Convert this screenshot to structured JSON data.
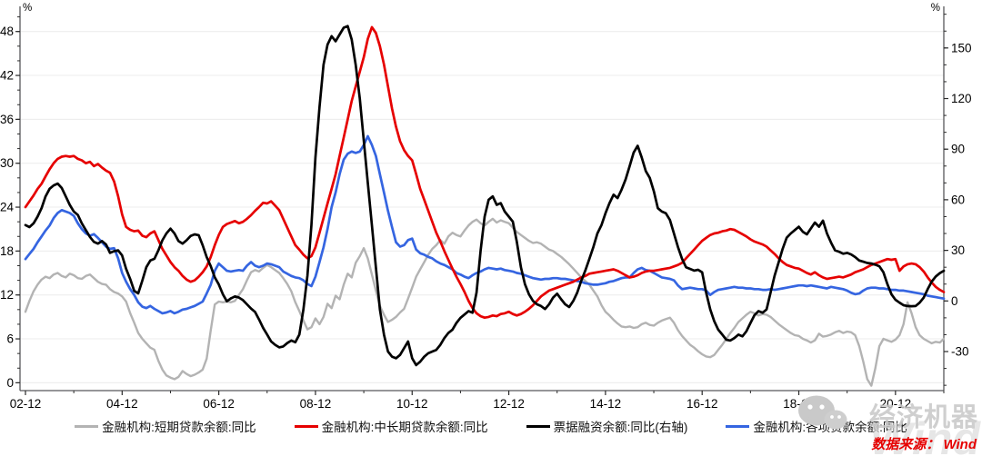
{
  "footer": {
    "source_label": "数据来源： Wind"
  },
  "watermark": {
    "brand": "经济机器",
    "logo": "chat-face-icon",
    "background_text": "Wind"
  },
  "legend": {
    "items": [
      {
        "label": "金融机构:短期贷款余额:同比",
        "color": "#b3b3b3"
      },
      {
        "label": "金融机构:中长期贷款余额:同比",
        "color": "#e60000"
      },
      {
        "label": "票据融资余额:同比(右轴)",
        "color": "#000000"
      },
      {
        "label": "金融机构:各项贷款余额:同比",
        "color": "#3565e1"
      }
    ]
  },
  "chart_data": {
    "type": "line",
    "title": "",
    "x_frequency": "monthly",
    "x_start_month": "2002-12",
    "x_end_month": "2021-12",
    "x_tick_labels": [
      "02-12",
      "04-12",
      "06-12",
      "08-12",
      "10-12",
      "12-12",
      "14-12",
      "16-12",
      "18-12",
      "20-12"
    ],
    "x_major_tick_every_months": 24,
    "x_minor_tick_every_months": 12,
    "grid": "horizontal light gridlines at left-axis major ticks",
    "legend_position": "bottom",
    "left_axis": {
      "unit": "%",
      "ticks": [
        0,
        6,
        12,
        18,
        24,
        30,
        36,
        42,
        48
      ],
      "minor_step": 2,
      "range": [
        -1.07,
        50.57
      ]
    },
    "right_axis": {
      "unit": "%",
      "ticks": [
        -30,
        0,
        30,
        60,
        90,
        120,
        150
      ],
      "minor_step": 10,
      "range": [
        -53.15,
        170.9
      ]
    },
    "series": [
      {
        "name": "金融机构:短期贷款余额:同比",
        "color": "#b3b3b3",
        "axis": "left",
        "width": 2.4,
        "values": [
          9.7,
          11.2,
          12.5,
          13.4,
          14.1,
          14.5,
          14.3,
          14.8,
          15.0,
          14.6,
          14.4,
          14.9,
          14.7,
          14.3,
          14.2,
          14.6,
          14.8,
          14.3,
          13.8,
          13.5,
          13.4,
          12.8,
          12.4,
          12.2,
          11.8,
          11.1,
          9.5,
          8.2,
          6.8,
          6.0,
          5.4,
          4.8,
          4.5,
          3.0,
          1.8,
          1.0,
          0.7,
          0.5,
          0.8,
          1.6,
          1.2,
          0.9,
          1.1,
          1.4,
          1.8,
          3.3,
          7.2,
          10.7,
          11.1,
          11.0,
          11.1,
          11.0,
          11.2,
          12.0,
          12.8,
          14.0,
          15.1,
          15.4,
          15.2,
          15.7,
          16.1,
          15.8,
          15.4,
          15.0,
          14.3,
          13.5,
          12.5,
          11.0,
          9.8,
          8.5,
          7.3,
          7.6,
          8.8,
          8.0,
          9.0,
          10.8,
          10.2,
          11.9,
          11.4,
          13.4,
          14.9,
          14.4,
          16.4,
          17.3,
          18.4,
          17.0,
          14.8,
          12.6,
          10.5,
          9.3,
          8.3,
          8.6,
          9.0,
          9.6,
          10.1,
          11.5,
          13.0,
          14.5,
          15.5,
          16.5,
          17.5,
          18.3,
          18.8,
          19.5,
          19.0,
          20.0,
          20.5,
          20.2,
          20.0,
          20.8,
          21.5,
          22.0,
          22.3,
          21.8,
          21.5,
          22.0,
          22.4,
          21.9,
          22.2,
          22.0,
          21.8,
          21.2,
          20.6,
          20.2,
          19.8,
          19.4,
          19.1,
          19.2,
          19.0,
          18.6,
          18.2,
          18.0,
          17.6,
          17.2,
          16.7,
          16.2,
          15.6,
          15.0,
          14.4,
          13.9,
          13.4,
          12.6,
          11.8,
          10.6,
          9.7,
          9.2,
          8.6,
          8.1,
          7.7,
          7.6,
          7.7,
          7.5,
          7.6,
          8.0,
          8.2,
          7.9,
          7.8,
          8.2,
          8.5,
          8.7,
          8.9,
          8.2,
          7.2,
          6.4,
          5.8,
          5.2,
          4.8,
          4.3,
          3.9,
          3.6,
          3.5,
          3.8,
          4.5,
          5.2,
          6.0,
          6.8,
          7.5,
          8.3,
          8.8,
          9.3,
          9.7,
          9.5,
          9.2,
          9.4,
          9.3,
          9.0,
          8.5,
          8.0,
          7.6,
          7.2,
          6.8,
          6.5,
          6.4,
          6.0,
          5.8,
          5.5,
          5.8,
          6.7,
          6.3,
          6.4,
          6.6,
          6.9,
          7.1,
          6.8,
          7.0,
          6.9,
          6.5,
          5.0,
          2.9,
          0.5,
          -0.4,
          2.0,
          5.0,
          6.0,
          5.8,
          5.6,
          5.9,
          6.5,
          8.0,
          11.0,
          9.5,
          7.6,
          6.5,
          6.0,
          5.7,
          5.4,
          5.6,
          5.5,
          6.0
        ]
      },
      {
        "name": "金融机构:中长期贷款余额:同比",
        "color": "#e60000",
        "axis": "left",
        "width": 2.7,
        "values": [
          24.0,
          24.8,
          25.6,
          26.5,
          27.2,
          28.2,
          29.2,
          30.0,
          30.6,
          30.9,
          31.0,
          30.9,
          31.0,
          30.6,
          30.4,
          30.0,
          30.2,
          29.6,
          29.9,
          29.4,
          29.0,
          28.7,
          27.5,
          25.5,
          23.0,
          21.3,
          20.9,
          20.7,
          20.8,
          20.1,
          19.9,
          20.4,
          20.7,
          19.5,
          18.3,
          17.4,
          16.5,
          15.8,
          15.3,
          14.6,
          14.1,
          13.8,
          14.0,
          14.5,
          15.1,
          15.9,
          17.2,
          18.8,
          20.2,
          21.3,
          21.7,
          21.9,
          22.1,
          21.8,
          22.0,
          22.4,
          22.9,
          23.5,
          24.0,
          24.6,
          24.5,
          24.8,
          24.2,
          23.6,
          22.4,
          21.2,
          20.0,
          18.8,
          18.2,
          17.5,
          17.0,
          17.3,
          18.5,
          20.5,
          22.5,
          24.5,
          26.5,
          28.5,
          31.0,
          33.5,
          36.0,
          38.5,
          40.5,
          42.5,
          44.5,
          47.0,
          48.6,
          47.8,
          46.0,
          43.5,
          40.5,
          37.5,
          35.0,
          33.0,
          31.8,
          31.0,
          30.4,
          28.5,
          26.5,
          25.0,
          23.5,
          22.0,
          20.5,
          19.3,
          18.0,
          16.8,
          15.6,
          14.5,
          13.5,
          12.4,
          11.2,
          10.2,
          9.5,
          9.1,
          8.9,
          9.0,
          9.2,
          9.1,
          9.4,
          9.5,
          9.7,
          9.4,
          9.2,
          9.4,
          9.7,
          10.1,
          10.6,
          11.2,
          11.8,
          12.2,
          12.6,
          12.8,
          13.0,
          13.2,
          13.4,
          13.6,
          13.8,
          14.1,
          14.4,
          14.6,
          14.9,
          15.0,
          15.1,
          15.2,
          15.3,
          15.4,
          15.5,
          15.3,
          15.0,
          14.7,
          14.4,
          14.5,
          14.7,
          15.0,
          15.2,
          15.3,
          15.3,
          15.4,
          15.5,
          15.6,
          15.7,
          15.9,
          16.1,
          16.4,
          17.0,
          17.6,
          18.2,
          18.8,
          19.4,
          19.8,
          20.2,
          20.4,
          20.5,
          20.7,
          20.8,
          21.0,
          20.9,
          20.6,
          20.3,
          20.0,
          19.6,
          19.3,
          19.1,
          18.9,
          18.6,
          18.1,
          17.6,
          17.0,
          16.5,
          16.1,
          15.9,
          15.7,
          15.6,
          15.3,
          15.0,
          14.8,
          15.1,
          14.7,
          14.4,
          14.2,
          14.3,
          14.4,
          14.5,
          14.4,
          14.6,
          14.8,
          15.1,
          15.3,
          15.5,
          15.8,
          16.1,
          16.3,
          16.5,
          16.7,
          16.9,
          16.8,
          16.9,
          15.3,
          15.9,
          16.2,
          16.3,
          16.2,
          15.8,
          15.2,
          14.4,
          13.7,
          13.1,
          12.7,
          12.4
        ]
      },
      {
        "name": "票据融资余额:同比(右轴)",
        "color": "#000000",
        "axis": "right",
        "width": 2.7,
        "values": [
          45.0,
          43.8,
          46.0,
          50.0,
          55.0,
          62.0,
          66.5,
          68.5,
          69.6,
          67.0,
          62.0,
          57.0,
          53.0,
          51.0,
          46.0,
          42.0,
          38.0,
          35.0,
          34.0,
          35.5,
          33.5,
          28.5,
          29.5,
          30.0,
          27.0,
          19.0,
          13.0,
          6.0,
          4.5,
          12.0,
          20.0,
          24.0,
          25.0,
          30.0,
          36.0,
          40.0,
          42.9,
          40.0,
          35.5,
          34.0,
          36.0,
          38.5,
          39.5,
          39.0,
          33.0,
          26.0,
          20.6,
          14.0,
          9.8,
          4.0,
          -0.2,
          1.5,
          2.7,
          2.0,
          0.5,
          -2.0,
          -4.5,
          -6.5,
          -11.0,
          -16.0,
          -19.9,
          -24.0,
          -26.0,
          -27.5,
          -27.0,
          -25.0,
          -23.5,
          -24.5,
          -20.0,
          -5.0,
          15.0,
          45.0,
          85.0,
          115.0,
          140.0,
          152.0,
          157.0,
          154.0,
          158.0,
          162.0,
          163.0,
          155.0,
          140.0,
          120.0,
          95.0,
          70.0,
          45.0,
          20.0,
          -5.0,
          -20.0,
          -30.0,
          -33.0,
          -34.0,
          -32.0,
          -28.0,
          -24.0,
          -34.0,
          -38.0,
          -36.0,
          -33.0,
          -31.0,
          -30.0,
          -29.0,
          -26.0,
          -22.0,
          -19.0,
          -17.0,
          -13.0,
          -10.0,
          -8.0,
          -6.0,
          -7.0,
          5.0,
          30.0,
          50.0,
          60.0,
          62.0,
          57.0,
          58.0,
          53.0,
          50.0,
          47.0,
          35.0,
          20.0,
          10.0,
          4.0,
          0.0,
          -2.0,
          -3.0,
          -4.8,
          -2.0,
          2.0,
          4.3,
          1.0,
          -2.0,
          -3.6,
          0.0,
          5.0,
          12.0,
          18.0,
          25.0,
          32.0,
          40.0,
          45.0,
          52.0,
          58.0,
          63.0,
          61.0,
          66.0,
          72.0,
          80.0,
          88.0,
          92.0,
          85.0,
          77.0,
          73.0,
          65.0,
          55.0,
          53.0,
          52.0,
          48.0,
          40.0,
          32.0,
          25.0,
          20.0,
          19.0,
          18.0,
          18.5,
          17.0,
          5.0,
          -5.0,
          -12.0,
          -17.0,
          -20.0,
          -23.0,
          -23.5,
          -22.0,
          -20.0,
          -21.0,
          -18.0,
          -13.0,
          -8.4,
          -6.0,
          -7.0,
          -5.0,
          5.0,
          15.0,
          23.0,
          31.0,
          37.5,
          40.0,
          42.0,
          44.0,
          41.0,
          39.5,
          43.0,
          46.5,
          44.0,
          47.6,
          40.0,
          34.6,
          30.0,
          29.2,
          28.0,
          28.5,
          27.6,
          26.0,
          24.0,
          23.3,
          22.5,
          22.2,
          21.5,
          20.6,
          17.0,
          9.9,
          4.0,
          0.7,
          -1.0,
          -2.5,
          -3.0,
          -3.1,
          -3.0,
          -1.0,
          2.0,
          7.0,
          11.5,
          14.5,
          16.5,
          17.9
        ]
      },
      {
        "name": "金融机构:各项贷款余额:同比",
        "color": "#3565e1",
        "axis": "left",
        "width": 2.7,
        "values": [
          16.9,
          17.6,
          18.3,
          19.2,
          20.0,
          20.8,
          21.5,
          22.5,
          23.2,
          23.6,
          23.4,
          23.2,
          22.8,
          21.8,
          21.0,
          20.4,
          20.1,
          20.3,
          19.8,
          19.2,
          18.6,
          18.3,
          18.4,
          17.0,
          15.0,
          13.8,
          12.8,
          12.0,
          11.0,
          10.4,
          10.2,
          10.5,
          10.1,
          9.8,
          9.5,
          9.6,
          9.8,
          9.5,
          9.7,
          10.0,
          10.1,
          10.3,
          10.5,
          10.8,
          11.1,
          12.2,
          13.4,
          15.3,
          16.3,
          15.8,
          15.3,
          15.2,
          15.3,
          15.4,
          15.3,
          16.0,
          16.5,
          16.0,
          15.8,
          16.0,
          16.3,
          16.2,
          16.0,
          15.8,
          15.2,
          14.9,
          14.6,
          14.4,
          14.3,
          14.0,
          13.5,
          13.2,
          14.5,
          16.5,
          18.5,
          21.0,
          24.0,
          26.0,
          28.5,
          30.5,
          31.3,
          31.6,
          31.4,
          31.6,
          32.5,
          33.7,
          32.5,
          31.0,
          28.5,
          26.0,
          23.5,
          21.3,
          19.2,
          18.6,
          18.8,
          19.5,
          19.7,
          18.2,
          17.7,
          17.5,
          17.2,
          17.0,
          16.6,
          16.3,
          16.1,
          15.8,
          15.5,
          15.0,
          14.8,
          14.5,
          14.3,
          14.7,
          15.0,
          15.2,
          15.5,
          15.7,
          15.6,
          15.5,
          15.6,
          15.4,
          15.3,
          15.2,
          15.0,
          14.9,
          14.7,
          14.5,
          14.3,
          14.2,
          14.1,
          14.2,
          14.2,
          14.3,
          14.3,
          14.2,
          14.2,
          14.1,
          14.0,
          13.9,
          13.8,
          13.6,
          13.5,
          13.4,
          13.4,
          13.5,
          13.6,
          13.8,
          13.9,
          14.1,
          14.3,
          14.4,
          14.4,
          15.0,
          15.5,
          15.7,
          15.4,
          15.3,
          15.0,
          14.7,
          14.4,
          14.3,
          14.2,
          14.0,
          13.3,
          12.8,
          12.9,
          13.0,
          12.9,
          12.8,
          12.8,
          12.6,
          12.0,
          12.4,
          12.7,
          12.8,
          12.9,
          13.0,
          13.1,
          13.0,
          13.0,
          12.9,
          12.9,
          12.8,
          12.8,
          12.7,
          12.7,
          12.8,
          12.7,
          12.8,
          12.9,
          13.0,
          13.1,
          13.2,
          13.3,
          13.3,
          13.2,
          13.3,
          13.2,
          13.1,
          13.0,
          12.9,
          13.1,
          13.0,
          12.9,
          12.8,
          12.6,
          12.3,
          12.1,
          12.2,
          12.6,
          12.9,
          13.0,
          13.0,
          12.9,
          12.9,
          12.8,
          12.7,
          12.7,
          12.6,
          12.6,
          12.5,
          12.4,
          12.3,
          12.2,
          12.1,
          11.9,
          11.8,
          11.7,
          11.6,
          11.5
        ]
      }
    ]
  }
}
